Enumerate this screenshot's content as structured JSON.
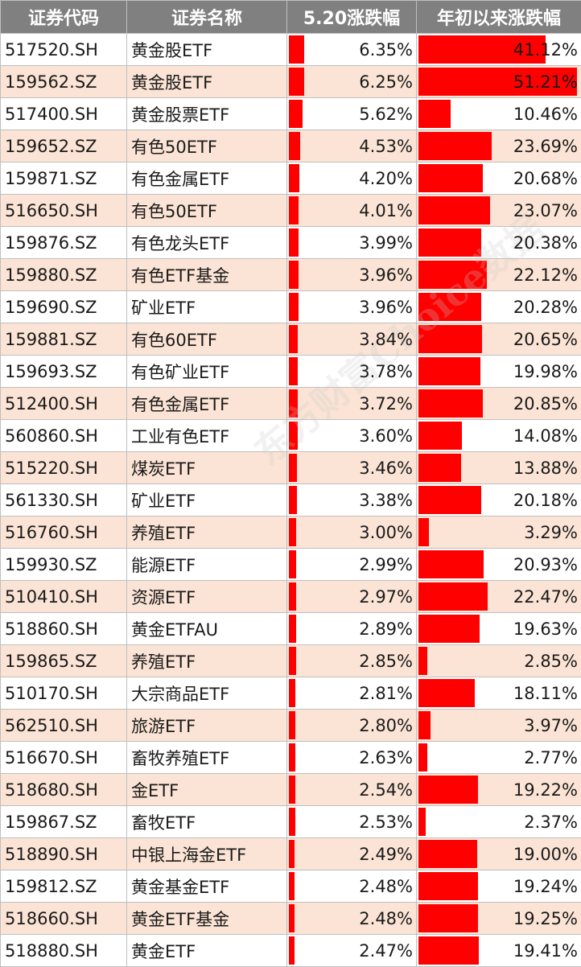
{
  "headers": [
    "证券代码",
    "证券名称",
    "5.20涨跌幅",
    "年初以来涨跌幅"
  ],
  "watermark": "东方财富Choice数据",
  "colors": {
    "bar": "#ff0000",
    "header_bg": "#808080",
    "row_alt": "#fbe4d5"
  },
  "rows": [
    {
      "code": "517520.SH",
      "name": "黄金股ETF",
      "chg": "6.35%",
      "chg_v": 6.35,
      "ytd": "41.12%",
      "ytd_v": 41.12
    },
    {
      "code": "159562.SZ",
      "name": "黄金股ETF",
      "chg": "6.25%",
      "chg_v": 6.25,
      "ytd": "51.21%",
      "ytd_v": 51.21
    },
    {
      "code": "517400.SH",
      "name": "黄金股票ETF",
      "chg": "5.62%",
      "chg_v": 5.62,
      "ytd": "10.46%",
      "ytd_v": 10.46
    },
    {
      "code": "159652.SZ",
      "name": "有色50ETF",
      "chg": "4.53%",
      "chg_v": 4.53,
      "ytd": "23.69%",
      "ytd_v": 23.69
    },
    {
      "code": "159871.SZ",
      "name": "有色金属ETF",
      "chg": "4.20%",
      "chg_v": 4.2,
      "ytd": "20.68%",
      "ytd_v": 20.68
    },
    {
      "code": "516650.SH",
      "name": "有色50ETF",
      "chg": "4.01%",
      "chg_v": 4.01,
      "ytd": "23.07%",
      "ytd_v": 23.07
    },
    {
      "code": "159876.SZ",
      "name": "有色龙头ETF",
      "chg": "3.99%",
      "chg_v": 3.99,
      "ytd": "20.38%",
      "ytd_v": 20.38
    },
    {
      "code": "159880.SZ",
      "name": "有色ETF基金",
      "chg": "3.96%",
      "chg_v": 3.96,
      "ytd": "22.12%",
      "ytd_v": 22.12
    },
    {
      "code": "159690.SZ",
      "name": "矿业ETF",
      "chg": "3.96%",
      "chg_v": 3.96,
      "ytd": "20.28%",
      "ytd_v": 20.28
    },
    {
      "code": "159881.SZ",
      "name": "有色60ETF",
      "chg": "3.84%",
      "chg_v": 3.84,
      "ytd": "20.65%",
      "ytd_v": 20.65
    },
    {
      "code": "159693.SZ",
      "name": "有色矿业ETF",
      "chg": "3.78%",
      "chg_v": 3.78,
      "ytd": "19.98%",
      "ytd_v": 19.98
    },
    {
      "code": "512400.SH",
      "name": "有色金属ETF",
      "chg": "3.72%",
      "chg_v": 3.72,
      "ytd": "20.85%",
      "ytd_v": 20.85
    },
    {
      "code": "560860.SH",
      "name": "工业有色ETF",
      "chg": "3.60%",
      "chg_v": 3.6,
      "ytd": "14.08%",
      "ytd_v": 14.08
    },
    {
      "code": "515220.SH",
      "name": "煤炭ETF",
      "chg": "3.46%",
      "chg_v": 3.46,
      "ytd": "13.88%",
      "ytd_v": 13.88
    },
    {
      "code": "561330.SH",
      "name": "矿业ETF",
      "chg": "3.38%",
      "chg_v": 3.38,
      "ytd": "20.18%",
      "ytd_v": 20.18
    },
    {
      "code": "516760.SH",
      "name": "养殖ETF",
      "chg": "3.00%",
      "chg_v": 3.0,
      "ytd": "3.29%",
      "ytd_v": 3.29
    },
    {
      "code": "159930.SZ",
      "name": "能源ETF",
      "chg": "2.99%",
      "chg_v": 2.99,
      "ytd": "20.93%",
      "ytd_v": 20.93
    },
    {
      "code": "510410.SH",
      "name": "资源ETF",
      "chg": "2.97%",
      "chg_v": 2.97,
      "ytd": "22.47%",
      "ytd_v": 22.47
    },
    {
      "code": "518860.SH",
      "name": "黄金ETFAU",
      "chg": "2.89%",
      "chg_v": 2.89,
      "ytd": "19.63%",
      "ytd_v": 19.63
    },
    {
      "code": "159865.SZ",
      "name": "养殖ETF",
      "chg": "2.85%",
      "chg_v": 2.85,
      "ytd": "2.85%",
      "ytd_v": 2.85
    },
    {
      "code": "510170.SH",
      "name": "大宗商品ETF",
      "chg": "2.81%",
      "chg_v": 2.81,
      "ytd": "18.11%",
      "ytd_v": 18.11
    },
    {
      "code": "562510.SH",
      "name": "旅游ETF",
      "chg": "2.80%",
      "chg_v": 2.8,
      "ytd": "3.97%",
      "ytd_v": 3.97
    },
    {
      "code": "516670.SH",
      "name": "畜牧养殖ETF",
      "chg": "2.63%",
      "chg_v": 2.63,
      "ytd": "2.77%",
      "ytd_v": 2.77
    },
    {
      "code": "518680.SH",
      "name": "金ETF",
      "chg": "2.54%",
      "chg_v": 2.54,
      "ytd": "19.22%",
      "ytd_v": 19.22
    },
    {
      "code": "159867.SZ",
      "name": "畜牧ETF",
      "chg": "2.53%",
      "chg_v": 2.53,
      "ytd": "2.37%",
      "ytd_v": 2.37
    },
    {
      "code": "518890.SH",
      "name": "中银上海金ETF",
      "chg": "2.49%",
      "chg_v": 2.49,
      "ytd": "19.00%",
      "ytd_v": 19.0
    },
    {
      "code": "159812.SZ",
      "name": "黄金基金ETF",
      "chg": "2.48%",
      "chg_v": 2.48,
      "ytd": "19.24%",
      "ytd_v": 19.24
    },
    {
      "code": "518660.SH",
      "name": "黄金ETF基金",
      "chg": "2.48%",
      "chg_v": 2.48,
      "ytd": "19.25%",
      "ytd_v": 19.25
    },
    {
      "code": "518880.SH",
      "name": "黄金ETF",
      "chg": "2.47%",
      "chg_v": 2.47,
      "ytd": "19.41%",
      "ytd_v": 19.41
    }
  ]
}
